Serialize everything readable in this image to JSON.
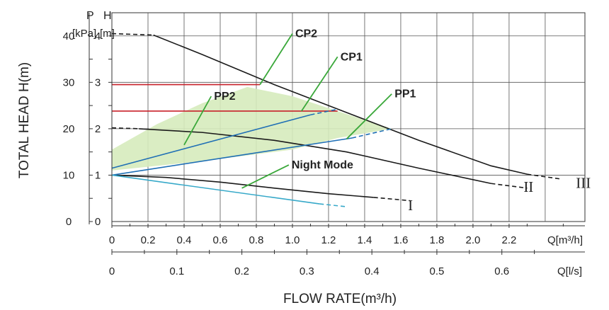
{
  "chart_data": {
    "type": "line",
    "title": "",
    "ylabel": "TOTAL HEAD H(m)",
    "xlabel": "FLOW RATE(m³/h)",
    "p_axis": {
      "label_line1": "P",
      "label_line2": "[kPa]",
      "ticks": [
        0,
        10,
        20,
        30,
        40
      ]
    },
    "h_axis": {
      "label_line1": "H",
      "label_line2": "[m]",
      "ticks": [
        0,
        1,
        2,
        3,
        4
      ],
      "ylim": [
        0,
        4.5
      ]
    },
    "x_axis_m3h": {
      "unit": "Q[m³/h]",
      "ticks": [
        "0",
        "0.2",
        "0.4",
        "0.6",
        "0.8",
        "1.0",
        "1.2",
        "1.4",
        "1.6",
        "1.8",
        "2.0",
        "2.2"
      ],
      "xlim": [
        0,
        2.62
      ]
    },
    "x_axis_ls": {
      "unit": "Q[l/s]",
      "ticks": [
        0,
        0.1,
        0.2,
        0.3,
        0.4,
        0.5,
        0.6
      ],
      "tick_labels": [
        "0",
        "0.1",
        "0.2",
        "0.3",
        "0.4",
        "0.5",
        "0.6"
      ]
    },
    "series": [
      {
        "name": "III",
        "color": "#1a1a1a",
        "dash_x": [
          0,
          0.23
        ],
        "dash_y": [
          4.05,
          4.02
        ],
        "x": [
          0.23,
          0.5,
          0.9,
          1.3,
          1.7,
          2.1,
          2.3
        ],
        "y": [
          4.02,
          3.6,
          2.95,
          2.35,
          1.75,
          1.2,
          1.02
        ],
        "dash2_x": [
          2.3,
          2.48
        ],
        "dash2_y": [
          1.02,
          0.92
        ]
      },
      {
        "name": "II",
        "color": "#1a1a1a",
        "dash_x": [
          0,
          0.15
        ],
        "dash_y": [
          2.02,
          2.0
        ],
        "x": [
          0.15,
          0.5,
          0.9,
          1.3,
          1.7,
          2.1
        ],
        "y": [
          2.0,
          1.92,
          1.75,
          1.5,
          1.15,
          0.82
        ],
        "dash2_x": [
          2.1,
          2.3
        ],
        "dash2_y": [
          0.82,
          0.72
        ]
      },
      {
        "name": "I",
        "color": "#1a1a1a",
        "x": [
          0,
          0.3,
          0.6,
          0.9,
          1.2,
          1.45
        ],
        "y": [
          1.0,
          0.95,
          0.85,
          0.72,
          0.6,
          0.52
        ],
        "dash2_x": [
          1.45,
          1.65
        ],
        "dash2_y": [
          0.52,
          0.45
        ]
      },
      {
        "name": "CP2",
        "color": "#c8202a",
        "x": [
          0,
          0.82
        ],
        "y": [
          2.95,
          2.95
        ]
      },
      {
        "name": "CP1",
        "color": "#c8202a",
        "x": [
          0,
          1.25
        ],
        "y": [
          2.38,
          2.38
        ]
      },
      {
        "name": "PP2",
        "color": "#1f6fb5",
        "x": [
          0,
          1.1
        ],
        "y": [
          1.15,
          2.3
        ],
        "dash2_x": [
          1.1,
          1.25
        ],
        "dash2_y": [
          2.3,
          2.42
        ]
      },
      {
        "name": "PP1",
        "color": "#1f6fb5",
        "x": [
          0,
          1.33
        ],
        "y": [
          1.0,
          1.8
        ],
        "dash2_x": [
          1.33,
          1.55
        ],
        "dash2_y": [
          1.8,
          2.0
        ]
      },
      {
        "name": "Night Mode",
        "color": "#37a9c9",
        "x": [
          0,
          1.15
        ],
        "y": [
          1.0,
          0.38
        ],
        "dash2_x": [
          1.15,
          1.3
        ],
        "dash2_y": [
          0.38,
          0.32
        ]
      }
    ],
    "shaded_region": {
      "color": "#d6ebbd",
      "x": [
        0,
        0.25,
        0.5,
        0.75,
        1.0,
        1.25,
        1.55,
        1.25,
        1.0,
        0.5,
        0
      ],
      "y": [
        1.55,
        2.1,
        2.55,
        2.9,
        2.7,
        2.38,
        2.0,
        1.8,
        1.55,
        1.3,
        1.1
      ]
    },
    "annotations": [
      {
        "text": "CP2",
        "at": [
          0.82,
          2.95
        ],
        "label_at": [
          1.0,
          4.05
        ]
      },
      {
        "text": "CP1",
        "at": [
          1.05,
          2.38
        ],
        "label_at": [
          1.25,
          3.55
        ]
      },
      {
        "text": "PP2",
        "at": [
          0.4,
          1.65
        ],
        "label_at": [
          0.55,
          2.7
        ]
      },
      {
        "text": "PP1",
        "at": [
          1.3,
          1.78
        ],
        "label_at": [
          1.55,
          2.75
        ]
      },
      {
        "text": "Night Mode",
        "at": [
          0.72,
          0.72
        ],
        "label_at": [
          0.98,
          1.22
        ]
      }
    ],
    "curve_labels": [
      {
        "text": "III",
        "at": [
          2.57,
          0.83
        ]
      },
      {
        "text": "II",
        "at": [
          2.28,
          0.75
        ]
      },
      {
        "text": "I",
        "at": [
          1.64,
          0.35
        ]
      }
    ],
    "grid": true
  }
}
